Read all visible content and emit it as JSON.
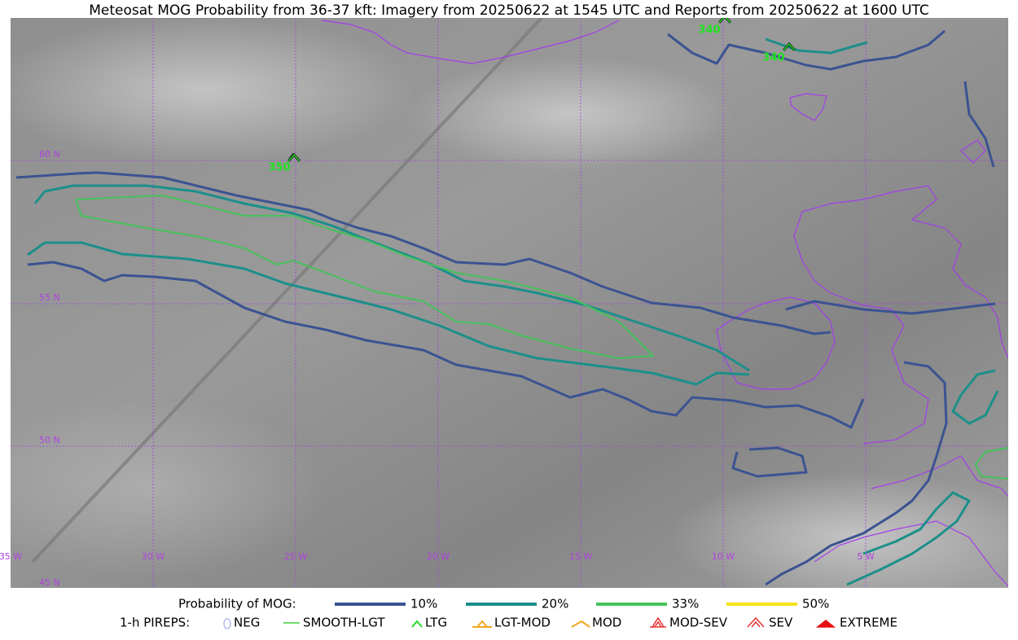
{
  "title": "Meteosat MOG Probability from 36-37 kft: Imagery from 20250622 at 1545 UTC and Reports from 20250622 at 1600 UTC",
  "map": {
    "lat_labels": [
      "60 N",
      "55 N",
      "50 N",
      "45 N"
    ],
    "lon_labels": [
      "35 W",
      "30 W",
      "25 W",
      "20 W",
      "15 W",
      "10 W",
      "5 W"
    ],
    "pirep_altitudes": [
      "350",
      "340",
      "340"
    ]
  },
  "legend": {
    "probability_title": "Probability of MOG:",
    "probability_levels": [
      {
        "label": "10%",
        "color": "#3b5391"
      },
      {
        "label": "20%",
        "color": "#1c8f8a"
      },
      {
        "label": "33%",
        "color": "#45c25a"
      },
      {
        "label": "50%",
        "color": "#f5e41a"
      }
    ],
    "pirep_title": "1-h PIREPS:",
    "pirep_types": [
      {
        "label": "NEG",
        "color": "#b8b8f0"
      },
      {
        "label": "SMOOTH-LGT",
        "color": "#3fd43f"
      },
      {
        "label": "LTG",
        "color": "#22dd22"
      },
      {
        "label": "LGT-MOD",
        "color": "#f0a820"
      },
      {
        "label": "MOD",
        "color": "#f0a820"
      },
      {
        "label": "MOD-SEV",
        "color": "#e83030"
      },
      {
        "label": "SEV",
        "color": "#e83030"
      },
      {
        "label": "EXTREME",
        "color": "#e81010"
      }
    ]
  }
}
